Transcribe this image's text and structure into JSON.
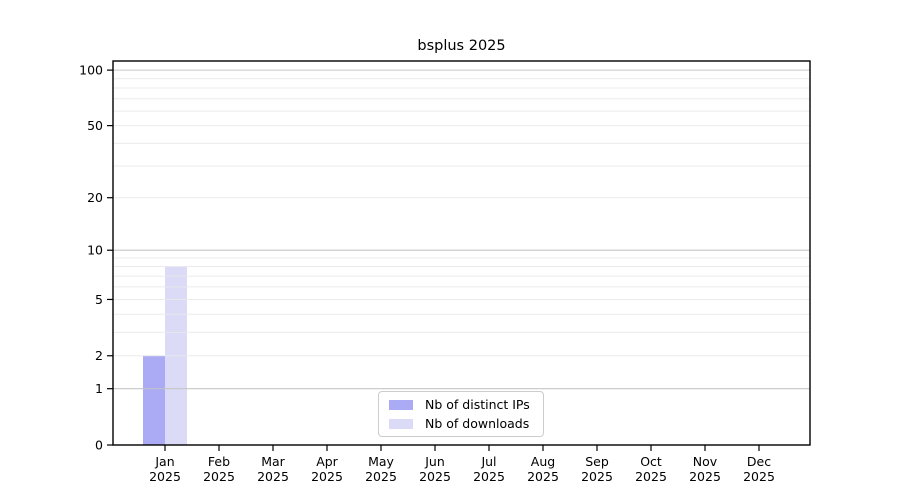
{
  "chart_data": {
    "type": "bar",
    "title": "bsplus 2025",
    "categories": [
      "Jan",
      "Feb",
      "Mar",
      "Apr",
      "May",
      "Jun",
      "Jul",
      "Aug",
      "Sep",
      "Oct",
      "Nov",
      "Dec"
    ],
    "category_year": "2025",
    "series": [
      {
        "name": "Nb of distinct IPs",
        "color": "#aaaaf5",
        "values": [
          2,
          0,
          0,
          0,
          0,
          0,
          0,
          0,
          0,
          0,
          0,
          0
        ]
      },
      {
        "name": "Nb of downloads",
        "color": "#dbdbf8",
        "values": [
          8,
          0,
          0,
          0,
          0,
          0,
          0,
          0,
          0,
          0,
          0,
          0
        ]
      }
    ],
    "y_scale": "log10(1+x)",
    "ylim": [
      0,
      112
    ],
    "y_ticks": [
      0,
      1,
      2,
      5,
      10,
      20,
      50,
      100
    ],
    "y_major_gridlines": [
      1,
      10,
      100
    ],
    "y_minor_gridlines": [
      2,
      3,
      4,
      5,
      6,
      7,
      8,
      9,
      20,
      30,
      40,
      50,
      60,
      70,
      80,
      90
    ],
    "grid": true,
    "legend_position": "bottom-center",
    "colors": {
      "background": "#ffffff",
      "frame": "#000000",
      "tick": "#000000",
      "grid_major": "#c3c3c3",
      "grid_minor": "#e9e9e9",
      "legend_border": "#cccccc"
    }
  }
}
